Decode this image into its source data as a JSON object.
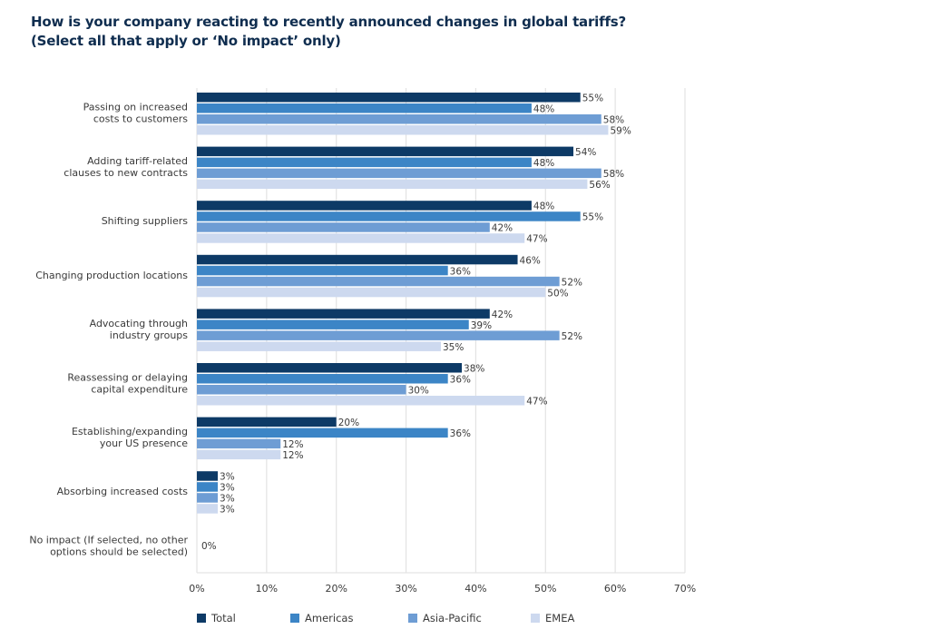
{
  "chart_data": {
    "type": "bar",
    "orientation": "horizontal",
    "title": "How is your company reacting to recently announced changes in global tariffs?",
    "subtitle": "(Select all that apply or ‘No impact’ only)",
    "xlabel": "",
    "ylabel": "",
    "xlim": [
      0,
      70
    ],
    "x_ticks": [
      0,
      10,
      20,
      30,
      40,
      50,
      60,
      70
    ],
    "x_tick_labels": [
      "0%",
      "10%",
      "20%",
      "30%",
      "40%",
      "50%",
      "60%",
      "70%"
    ],
    "grid": true,
    "legend_position": "bottom",
    "categories": [
      [
        "Passing on increased",
        "costs to customers"
      ],
      [
        "Adding tariff-related",
        "clauses to new contracts"
      ],
      [
        "Shifting suppliers"
      ],
      [
        "Changing production locations"
      ],
      [
        "Advocating through",
        "industry groups"
      ],
      [
        "Reassessing or delaying",
        "capital expenditure"
      ],
      [
        "Establishing/expanding",
        "your US presence"
      ],
      [
        "Absorbing increased costs"
      ],
      [
        "No impact (If selected, no other",
        "options should be selected)"
      ]
    ],
    "series": [
      {
        "name": "Total",
        "color": "#0d3a66",
        "values": [
          55,
          54,
          48,
          46,
          42,
          38,
          20,
          3,
          0
        ]
      },
      {
        "name": "Americas",
        "color": "#3c85c6",
        "values": [
          48,
          48,
          55,
          36,
          39,
          36,
          36,
          3,
          null
        ]
      },
      {
        "name": "Asia-Pacific",
        "color": "#6e9dd4",
        "values": [
          58,
          58,
          42,
          52,
          52,
          30,
          12,
          3,
          null
        ]
      },
      {
        "name": "EMEA",
        "color": "#cdd9ef",
        "values": [
          59,
          56,
          47,
          50,
          35,
          47,
          12,
          3,
          null
        ]
      }
    ],
    "value_suffix": "%"
  }
}
